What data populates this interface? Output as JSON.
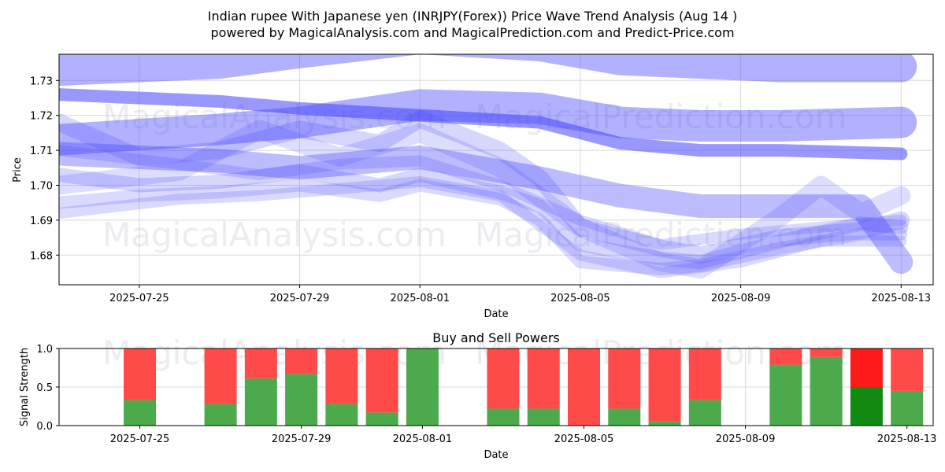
{
  "title_line1": "Indian rupee With Japanese yen (INRJPY(Forex)) Price Wave Trend Analysis (Aug 14 )",
  "title_line2": "powered by MagicalAnalysis.com and MagicalPrediction.com and Predict-Price.com",
  "watermarks": [
    "MagicalAnalysis.com",
    "MagicalPrediction.com"
  ],
  "chart_data": [
    {
      "type": "line",
      "title": "",
      "xlabel": "Date",
      "ylabel": "Price",
      "xlim": [
        "2025-07-23",
        "2025-08-14"
      ],
      "ylim": [
        1.6715,
        1.7375
      ],
      "yticks": [
        1.68,
        1.69,
        1.7,
        1.71,
        1.72,
        1.73
      ],
      "xticks": [
        "2025-07-25",
        "2025-07-29",
        "2025-08-01",
        "2025-08-05",
        "2025-08-09",
        "2025-08-13"
      ],
      "grid": true,
      "line_color": "#4444ff",
      "series": [
        {
          "x": [
            "2025-07-23",
            "2025-07-27",
            "2025-07-29",
            "2025-08-01",
            "2025-08-04",
            "2025-08-06",
            "2025-08-08",
            "2025-08-10",
            "2025-08-13"
          ],
          "values": [
            1.733,
            1.735,
            1.738,
            1.742,
            1.74,
            1.736,
            1.735,
            1.734,
            1.734
          ]
        },
        {
          "x": [
            "2025-07-23",
            "2025-07-27",
            "2025-07-29",
            "2025-08-01",
            "2025-08-04",
            "2025-08-06",
            "2025-08-08",
            "2025-08-10",
            "2025-08-13"
          ],
          "values": [
            1.713,
            1.716,
            1.718,
            1.723,
            1.722,
            1.718,
            1.717,
            1.717,
            1.718
          ]
        },
        {
          "x": [
            "2025-07-23",
            "2025-07-27",
            "2025-07-29",
            "2025-08-01",
            "2025-08-04",
            "2025-08-06",
            "2025-08-08",
            "2025-08-10",
            "2025-08-13"
          ],
          "values": [
            1.726,
            1.724,
            1.722,
            1.72,
            1.718,
            1.712,
            1.71,
            1.71,
            1.709
          ]
        },
        {
          "x": [
            "2025-07-23",
            "2025-07-27",
            "2025-07-29",
            "2025-08-01",
            "2025-08-04",
            "2025-08-06",
            "2025-08-08",
            "2025-08-10",
            "2025-08-12",
            "2025-08-13"
          ],
          "values": [
            1.709,
            1.707,
            1.705,
            1.708,
            1.702,
            1.697,
            1.694,
            1.694,
            1.694,
            1.678
          ]
        },
        {
          "x": [
            "2025-07-23",
            "2025-07-25",
            "2025-07-27",
            "2025-07-29",
            "2025-07-31",
            "2025-08-01",
            "2025-08-03",
            "2025-08-04",
            "2025-08-05",
            "2025-08-07",
            "2025-08-08",
            "2025-08-10",
            "2025-08-12",
            "2025-08-13"
          ],
          "values": [
            1.718,
            1.708,
            1.71,
            1.716,
            1.712,
            1.719,
            1.71,
            1.702,
            1.688,
            1.682,
            1.68,
            1.685,
            1.687,
            1.69
          ]
        },
        {
          "x": [
            "2025-07-23",
            "2025-07-25",
            "2025-07-27",
            "2025-07-29",
            "2025-07-31",
            "2025-08-01",
            "2025-08-03",
            "2025-08-04",
            "2025-08-05",
            "2025-08-07",
            "2025-08-08",
            "2025-08-10",
            "2025-08-12",
            "2025-08-13"
          ],
          "values": [
            1.703,
            1.7,
            1.701,
            1.704,
            1.7,
            1.703,
            1.698,
            1.694,
            1.683,
            1.679,
            1.678,
            1.684,
            1.689,
            1.688
          ]
        },
        {
          "x": [
            "2025-07-23",
            "2025-07-25",
            "2025-07-27",
            "2025-07-29",
            "2025-07-31",
            "2025-08-01",
            "2025-08-03",
            "2025-08-04",
            "2025-08-05",
            "2025-08-07",
            "2025-08-08",
            "2025-08-10",
            "2025-08-12",
            "2025-08-13"
          ],
          "values": [
            1.695,
            1.697,
            1.698,
            1.7,
            1.697,
            1.7,
            1.696,
            1.69,
            1.678,
            1.676,
            1.677,
            1.682,
            1.686,
            1.686
          ]
        },
        {
          "x": [
            "2025-07-23",
            "2025-07-26",
            "2025-07-28",
            "2025-07-30",
            "2025-08-01",
            "2025-08-03",
            "2025-08-05",
            "2025-08-07",
            "2025-08-09",
            "2025-08-11",
            "2025-08-13"
          ],
          "values": [
            1.692,
            1.696,
            1.697,
            1.699,
            1.701,
            1.697,
            1.68,
            1.675,
            1.678,
            1.684,
            1.684
          ]
        },
        {
          "x": [
            "2025-07-23",
            "2025-07-26",
            "2025-07-28",
            "2025-07-30",
            "2025-08-01",
            "2025-08-03",
            "2025-08-05",
            "2025-08-07",
            "2025-08-09",
            "2025-08-11",
            "2025-08-13"
          ],
          "values": [
            1.71,
            1.706,
            1.703,
            1.706,
            1.707,
            1.7,
            1.69,
            1.683,
            1.686,
            1.688,
            1.69
          ]
        },
        {
          "x": [
            "2025-07-23",
            "2025-07-26",
            "2025-07-28",
            "2025-07-30",
            "2025-08-01",
            "2025-08-03",
            "2025-08-05",
            "2025-08-07",
            "2025-08-08",
            "2025-08-10",
            "2025-08-11",
            "2025-08-12",
            "2025-08-13"
          ],
          "values": [
            1.7,
            1.704,
            1.716,
            1.708,
            1.715,
            1.705,
            1.688,
            1.678,
            1.676,
            1.691,
            1.7,
            1.692,
            1.697
          ]
        }
      ]
    },
    {
      "type": "bar",
      "title": "Buy and Sell Powers",
      "xlabel": "Date",
      "ylabel": "Signal Strength",
      "ylim": [
        0,
        1
      ],
      "yticks": [
        "0.0",
        "0.5",
        "1.0"
      ],
      "xticks": [
        "2025-07-25",
        "2025-07-29",
        "2025-08-01",
        "2025-08-05",
        "2025-08-09",
        "2025-08-13"
      ],
      "categories": [
        "2025-07-25",
        "2025-07-27",
        "2025-07-28",
        "2025-07-29",
        "2025-07-30",
        "2025-07-31",
        "2025-08-01",
        "2025-08-03",
        "2025-08-04",
        "2025-08-05",
        "2025-08-06",
        "2025-08-07",
        "2025-08-08",
        "2025-08-10",
        "2025-08-11",
        "2025-08-12",
        "2025-08-13"
      ],
      "series": [
        {
          "color": "#4caa4c",
          "values": [
            0.33,
            0.28,
            0.61,
            0.67,
            0.28,
            0.17,
            1.0,
            0.22,
            0.22,
            0.0,
            0.22,
            0.06,
            0.33,
            0.79,
            0.89,
            0.5,
            0.45
          ]
        },
        {
          "color": "#ff4a4a",
          "values": [
            0.67,
            0.72,
            0.39,
            0.33,
            0.72,
            0.83,
            0.0,
            0.78,
            0.78,
            1.0,
            0.78,
            0.94,
            0.67,
            0.21,
            0.11,
            0.5,
            0.55
          ]
        }
      ],
      "highlight_category": "2025-08-12",
      "highlight_colors": {
        "buy": "#128a12",
        "sell": "#ff1a1a"
      }
    }
  ]
}
